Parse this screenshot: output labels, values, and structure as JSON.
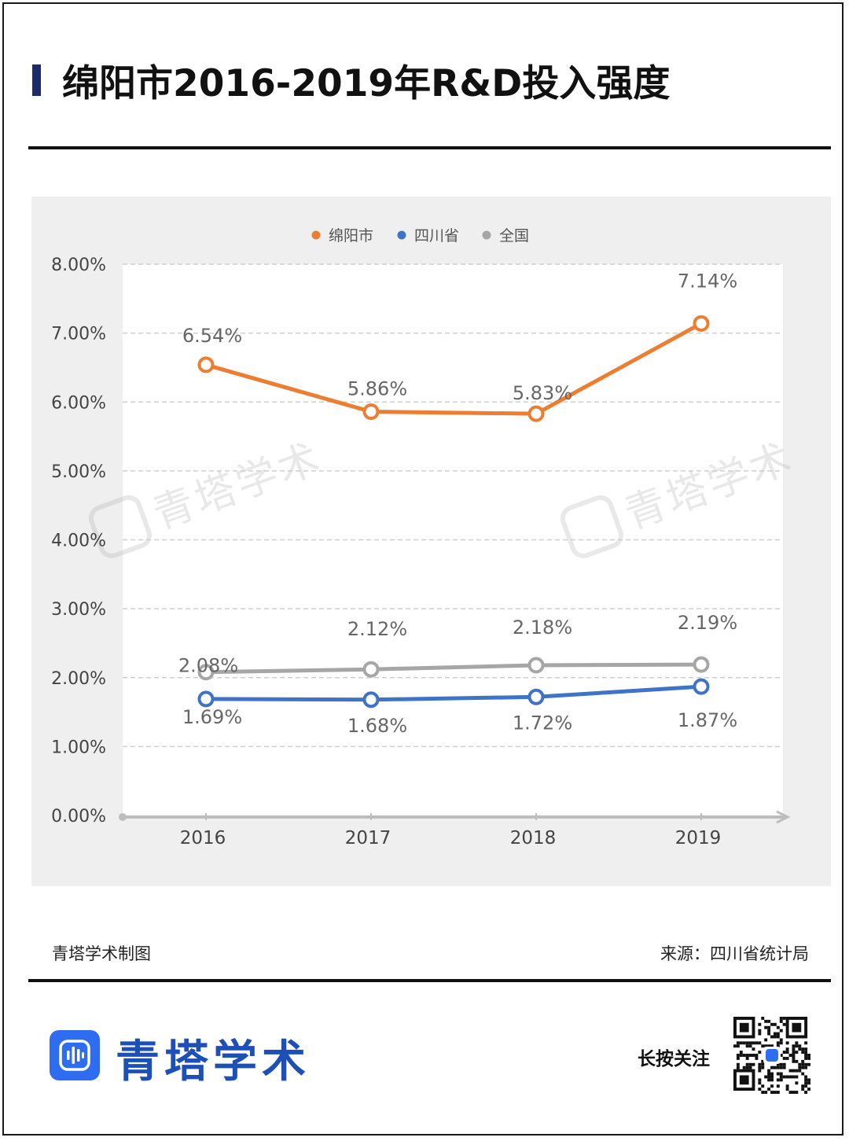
{
  "header": {
    "title": "绵阳市2016-2019年R&D投入强度"
  },
  "chart_data": {
    "type": "line",
    "title": "",
    "xlabel": "",
    "ylabel": "",
    "x": [
      "2016",
      "2017",
      "2018",
      "2019"
    ],
    "ylim": [
      0,
      8
    ],
    "y_ticks": [
      "0.00%",
      "1.00%",
      "2.00%",
      "3.00%",
      "4.00%",
      "5.00%",
      "6.00%",
      "7.00%",
      "8.00%"
    ],
    "grid": true,
    "legend_position": "top-center",
    "series": [
      {
        "name": "绵阳市",
        "color": "#ec7d31",
        "values": [
          6.54,
          5.86,
          5.83,
          7.14
        ],
        "labels": [
          "6.54%",
          "5.86%",
          "5.83%",
          "7.14%"
        ]
      },
      {
        "name": "四川省",
        "color": "#3f73c6",
        "values": [
          1.69,
          1.68,
          1.72,
          1.87
        ],
        "labels": [
          "1.69%",
          "1.68%",
          "1.72%",
          "1.87%"
        ]
      },
      {
        "name": "全国",
        "color": "#a6a6a6",
        "values": [
          2.08,
          2.12,
          2.18,
          2.19
        ],
        "labels": [
          "2.08%",
          "2.12%",
          "2.18%",
          "2.19%"
        ]
      }
    ],
    "watermark": "青塔学术"
  },
  "footer": {
    "credit": "青塔学术制图",
    "source": "来源：四川省统计局",
    "brand": "青塔学术",
    "follow": "长按关注",
    "logo_icon": "sound-wave-icon",
    "qr_icon": "qr-code-icon"
  }
}
